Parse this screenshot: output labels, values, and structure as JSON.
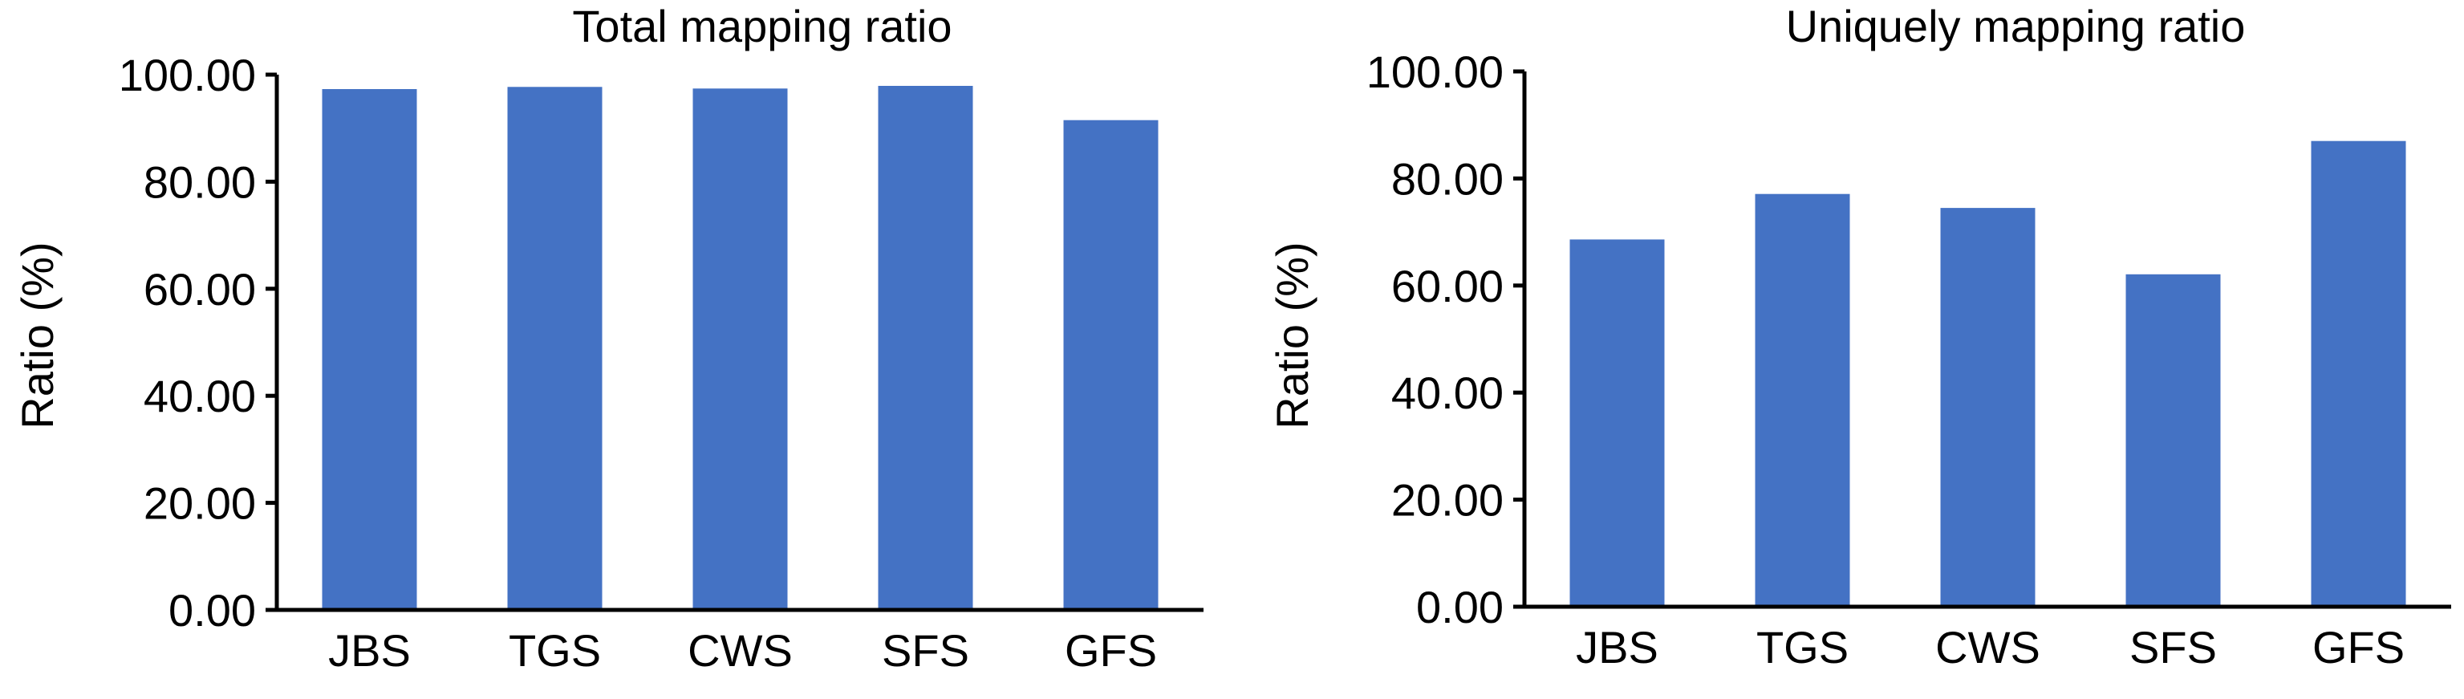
{
  "bar_color": "#4472C4",
  "axis_color": "#000000",
  "chart_data": [
    {
      "type": "bar",
      "title": "Total mapping ratio",
      "xlabel": "",
      "ylabel": "Ratio (%)",
      "categories": [
        "JBS",
        "TGS",
        "CWS",
        "SFS",
        "GFS"
      ],
      "values": [
        97.3,
        97.7,
        97.4,
        97.9,
        91.5
      ],
      "ylim": [
        0,
        100
      ],
      "yticks": [
        0,
        20,
        40,
        60,
        80,
        100
      ],
      "ytick_labels": [
        "0.00",
        "20.00",
        "40.00",
        "60.00",
        "80.00",
        "100.00"
      ],
      "grid": false,
      "legend": "none"
    },
    {
      "type": "bar",
      "title": "Uniquely mapping ratio",
      "xlabel": "",
      "ylabel": "Ratio (%)",
      "categories": [
        "JBS",
        "TGS",
        "CWS",
        "SFS",
        "GFS"
      ],
      "values": [
        68.6,
        77.1,
        74.5,
        62.1,
        87.0
      ],
      "ylim": [
        0,
        100
      ],
      "yticks": [
        0,
        20,
        40,
        60,
        80,
        100
      ],
      "ytick_labels": [
        "0.00",
        "20.00",
        "40.00",
        "60.00",
        "80.00",
        "100.00"
      ],
      "grid": false,
      "legend": "none"
    }
  ]
}
